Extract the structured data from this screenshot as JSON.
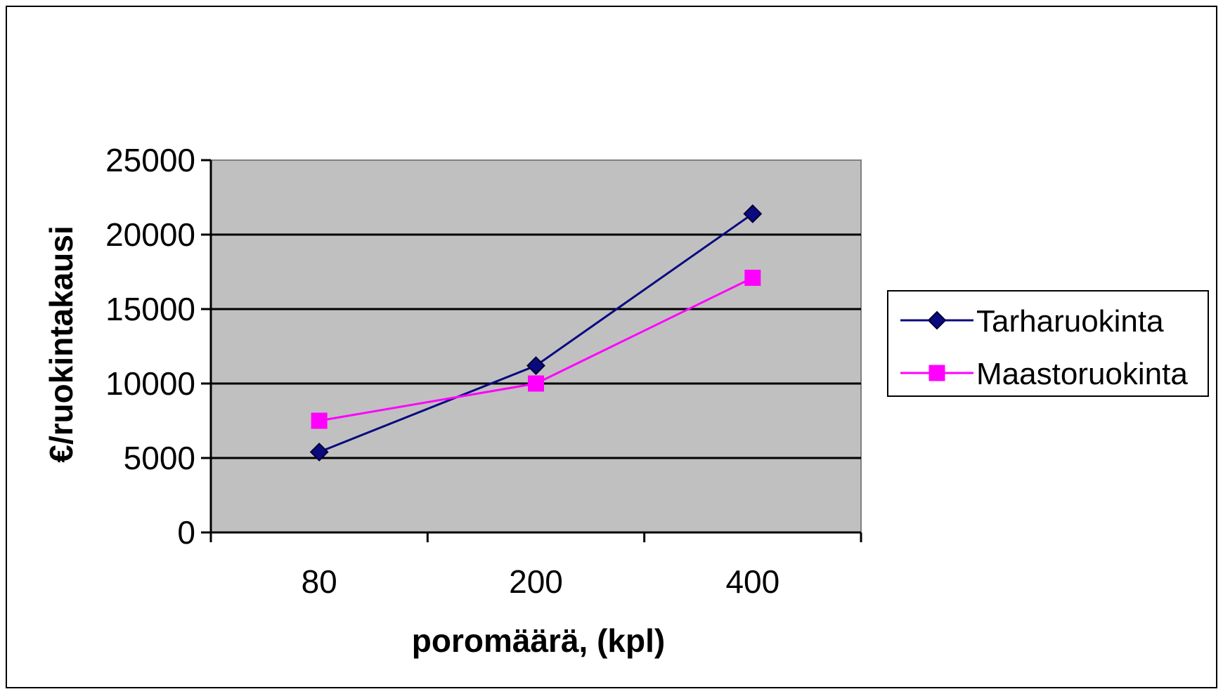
{
  "chart_data": {
    "type": "line",
    "title": "",
    "xlabel": "poromäärä, (kpl)",
    "ylabel": "€/ruokintakausi",
    "categories": [
      "80",
      "200",
      "400"
    ],
    "ylim": [
      0,
      25000
    ],
    "yticks": [
      0,
      5000,
      10000,
      15000,
      20000,
      25000
    ],
    "grid": true,
    "legend_position": "right",
    "series": [
      {
        "name": "Tarharuokinta",
        "values": [
          5400,
          11200,
          21400
        ],
        "color": "#0a0a80",
        "marker": "diamond"
      },
      {
        "name": "Maastoruokinta",
        "values": [
          7500,
          10000,
          17100
        ],
        "color": "#ff00ff",
        "marker": "square"
      }
    ]
  },
  "colors": {
    "plot_background": "#c0c0c0",
    "frame": "#000000"
  }
}
